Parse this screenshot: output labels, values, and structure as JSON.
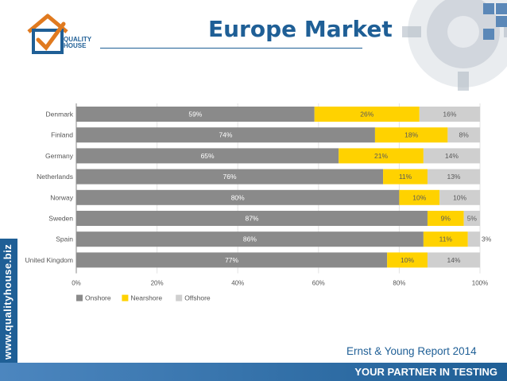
{
  "title": "Europe Market",
  "logo": {
    "line1": "QUALITY",
    "line2": "HOUSE"
  },
  "side_text": "www.qualityhouse.biz",
  "source_note": "Ernst & Young Report 2014",
  "tagline": "YOUR PARTNER IN TESTING",
  "colors": {
    "brand": "#1f5f96",
    "onshore": "#8a8a8a",
    "nearshore": "#ffd200",
    "offshore": "#cfcfcf"
  },
  "chart_data": {
    "type": "bar",
    "orientation": "horizontal",
    "stacked": true,
    "title": "",
    "categories": [
      "Denmark",
      "Finland",
      "Germany",
      "Netherlands",
      "Norway",
      "Sweden",
      "Spain",
      "United Kingdom"
    ],
    "series": [
      {
        "name": "Onshore",
        "values": [
          59,
          74,
          65,
          76,
          80,
          87,
          86,
          77
        ],
        "labels": [
          "59%",
          "74%",
          "65%",
          "76%",
          "80%",
          "87%",
          "86%",
          "77%"
        ]
      },
      {
        "name": "Nearshore",
        "values": [
          26,
          18,
          21,
          11,
          10,
          9,
          11,
          10
        ],
        "labels": [
          "26%",
          "18%",
          "21%",
          "11%",
          "10%",
          "9%",
          "11%",
          "10%"
        ]
      },
      {
        "name": "Offshore",
        "values": [
          16,
          8,
          14,
          13,
          10,
          5,
          3,
          14
        ],
        "labels": [
          "16%",
          "8%",
          "14%",
          "13%",
          "10%",
          "5%",
          "3%",
          "14%"
        ]
      }
    ],
    "xlim": [
      0,
      100
    ],
    "xticks": [
      "0%",
      "20%",
      "40%",
      "60%",
      "80%",
      "100%"
    ],
    "grid": true,
    "legend": "bottom-left"
  }
}
